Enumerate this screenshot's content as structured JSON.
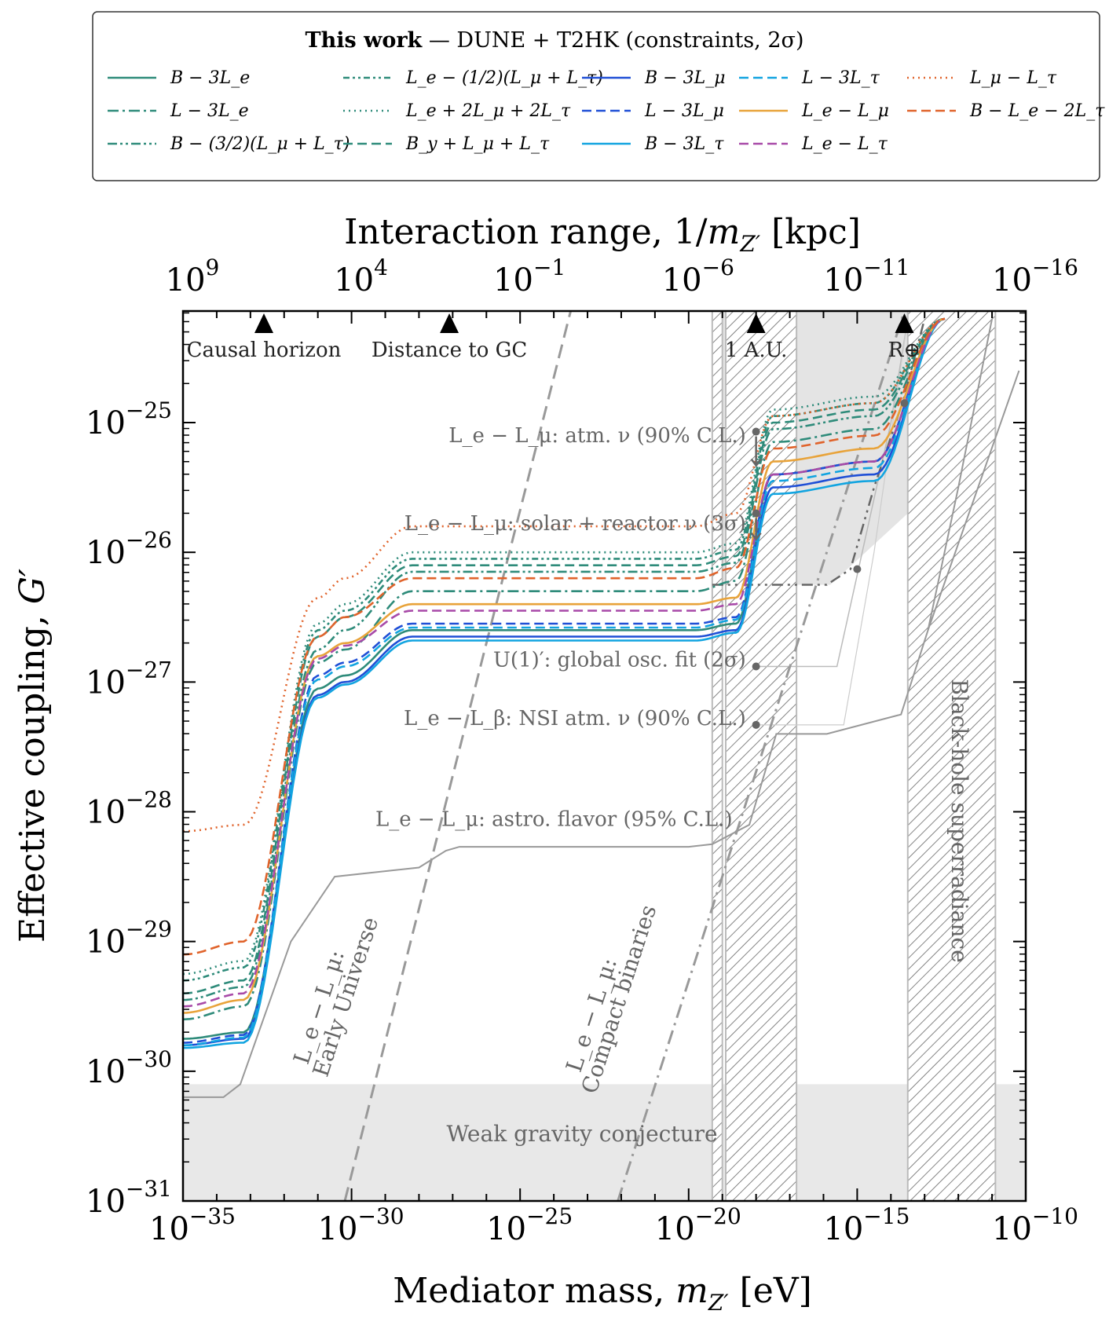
{
  "chart_data": {
    "type": "line",
    "legend": {
      "title_bold": "This work",
      "title_rest": " — DUNE + T2HK (constraints, 2σ)",
      "placement": "top"
    },
    "xlabel": "Mediator mass, m_Z′ [eV]",
    "x2label": "Interaction range, 1/m_Z′ [kpc]",
    "ylabel": "Effective coupling, G′",
    "xlim_log10": [
      -35,
      -10
    ],
    "ylim_log10": [
      -31,
      -24.2
    ],
    "x_ticks": [
      {
        "e": -35,
        "label": "10",
        "exp": "−35"
      },
      {
        "e": -30,
        "label": "10",
        "exp": "−30"
      },
      {
        "e": -25,
        "label": "10",
        "exp": "−25"
      },
      {
        "e": -20,
        "label": "10",
        "exp": "−20"
      },
      {
        "e": -15,
        "label": "10",
        "exp": "−15"
      },
      {
        "e": -10,
        "label": "10",
        "exp": "−10"
      }
    ],
    "x2_ticks": [
      {
        "e": -35,
        "label": "10",
        "exp": "9"
      },
      {
        "e": -30,
        "label": "10",
        "exp": "4"
      },
      {
        "e": -25,
        "label": "10",
        "exp": "−1"
      },
      {
        "e": -20,
        "label": "10",
        "exp": "−6"
      },
      {
        "e": -15,
        "label": "10",
        "exp": "−11"
      },
      {
        "e": -10,
        "label": "10",
        "exp": "−16"
      }
    ],
    "y_ticks": [
      {
        "e": -31,
        "label": "10",
        "exp": "−31"
      },
      {
        "e": -30,
        "label": "10",
        "exp": "−30"
      },
      {
        "e": -29,
        "label": "10",
        "exp": "−29"
      },
      {
        "e": -28,
        "label": "10",
        "exp": "−28"
      },
      {
        "e": -27,
        "label": "10",
        "exp": "−27"
      },
      {
        "e": -26,
        "label": "10",
        "exp": "−26"
      },
      {
        "e": -25,
        "label": "10",
        "exp": "−25"
      }
    ],
    "series": [
      {
        "name": "B − 3L_e",
        "color": "#2e8b7a",
        "dash": "solid",
        "shape_log10_G": [
          -29.75,
          -29.7,
          -27.05,
          -26.95,
          -26.6,
          -26.6,
          -26.55,
          -25.4,
          -25.3,
          -24.2
        ]
      },
      {
        "name": "L − 3L_e",
        "color": "#2e8b7a",
        "dash": "dashdot",
        "shape_log10_G": [
          -29.6,
          -29.5,
          -26.85,
          -26.75,
          -26.3,
          -26.3,
          -26.22,
          -25.15,
          -25.05,
          -24.2
        ]
      },
      {
        "name": "B − (3/2)(L_μ + L_τ)",
        "color": "#2e8b7a",
        "dash": "dashdotdot",
        "shape_log10_G": [
          -29.45,
          -29.35,
          -26.75,
          -26.6,
          -26.15,
          -26.15,
          -26.08,
          -25.05,
          -24.95,
          -24.2
        ]
      },
      {
        "name": "L_e − (1/2)(L_μ + L_τ)",
        "color": "#2e8b7a",
        "dash": "dashdotdot2",
        "shape_log10_G": [
          -29.3,
          -29.2,
          -26.6,
          -26.45,
          -26.05,
          -26.05,
          -25.98,
          -24.95,
          -24.85,
          -24.2
        ]
      },
      {
        "name": "L_e + 2L_μ + 2L_τ",
        "color": "#2e8b7a",
        "dash": "dotted",
        "shape_log10_G": [
          -29.25,
          -29.15,
          -26.55,
          -26.4,
          -26.0,
          -26.0,
          -25.93,
          -24.9,
          -24.8,
          -24.2
        ]
      },
      {
        "name": "B_y + L_μ + L_τ",
        "color": "#2e8b7a",
        "dash": "dashed",
        "shape_log10_G": [
          -29.4,
          -29.3,
          -26.65,
          -26.5,
          -26.1,
          -26.1,
          -26.03,
          -25.0,
          -24.9,
          -24.2
        ]
      },
      {
        "name": "B − 3L_μ",
        "color": "#1f4fd6",
        "dash": "solid",
        "shape_log10_G": [
          -29.8,
          -29.75,
          -27.1,
          -27.0,
          -26.65,
          -26.65,
          -26.6,
          -25.5,
          -25.4,
          -24.2
        ]
      },
      {
        "name": "L − 3L_μ",
        "color": "#1f4fd6",
        "dash": "dashed",
        "shape_log10_G": [
          -29.78,
          -29.72,
          -26.95,
          -26.85,
          -26.55,
          -26.55,
          -26.5,
          -25.4,
          -25.3,
          -24.2
        ]
      },
      {
        "name": "B − 3L_τ",
        "color": "#12a4e0",
        "dash": "solid",
        "shape_log10_G": [
          -29.82,
          -29.78,
          -27.12,
          -27.02,
          -26.68,
          -26.68,
          -26.62,
          -25.55,
          -25.45,
          -24.2
        ]
      },
      {
        "name": "L − 3L_τ",
        "color": "#12a4e0",
        "dash": "dashed",
        "shape_log10_G": [
          -29.8,
          -29.74,
          -26.98,
          -26.88,
          -26.58,
          -26.58,
          -26.52,
          -25.45,
          -25.35,
          -24.2
        ]
      },
      {
        "name": "L_e − L_μ",
        "color": "#e8a33a",
        "dash": "solid",
        "shape_log10_G": [
          -29.55,
          -29.45,
          -26.8,
          -26.7,
          -26.4,
          -26.4,
          -26.35,
          -25.3,
          -25.2,
          -24.2
        ]
      },
      {
        "name": "L_e − L_τ",
        "color": "#a84aa8",
        "dash": "dashed",
        "shape_log10_G": [
          -29.5,
          -29.4,
          -26.82,
          -26.72,
          -26.45,
          -26.45,
          -26.4,
          -25.4,
          -25.3,
          -24.2
        ]
      },
      {
        "name": "L_μ − L_τ",
        "color": "#e0632b",
        "dash": "dotted",
        "shape_log10_G": [
          -28.15,
          -28.1,
          -26.35,
          -26.2,
          -25.8,
          -25.8,
          -25.7,
          -24.95,
          -24.85,
          -24.2
        ]
      },
      {
        "name": "B − L_e − 2L_τ",
        "color": "#e0632b",
        "dash": "dashed",
        "shape_log10_G": [
          -29.1,
          -29.0,
          -26.65,
          -26.5,
          -26.2,
          -26.2,
          -26.12,
          -25.2,
          -25.1,
          -24.2
        ]
      }
    ],
    "shape_log10_m": [
      -35,
      -33.2,
      -31.0,
      -30.2,
      -28.2,
      -19.8,
      -18.6,
      -17.5,
      -14.5,
      -12.4
    ],
    "markers": [
      {
        "label": "Causal horizon",
        "e": -32.6
      },
      {
        "label": "Distance to GC",
        "e": -27.1
      },
      {
        "label": "1 A.U.",
        "e": -18.0
      },
      {
        "label": "R⊕",
        "e": -13.6
      }
    ],
    "annotations": [
      "L_e − L_μ: atm. ν (90% C.L.)",
      "L_e − L_μ: solar + reactor ν (3σ)",
      "U(1)′: global osc. fit (2σ)",
      "L_e − L_β: NSI atm. ν (90% C.L.)",
      "L_e − L_μ: astro. flavor (95% C.L.)"
    ],
    "regions": {
      "weak_gravity": "Weak gravity conjecture",
      "superradiance": "Black-hole superradiance",
      "early_universe_1": "L_e − L_μ:",
      "early_universe_2": "Early Universe",
      "compact_1": "L_e − L_μ:",
      "compact_2": "Compact binaries"
    }
  }
}
